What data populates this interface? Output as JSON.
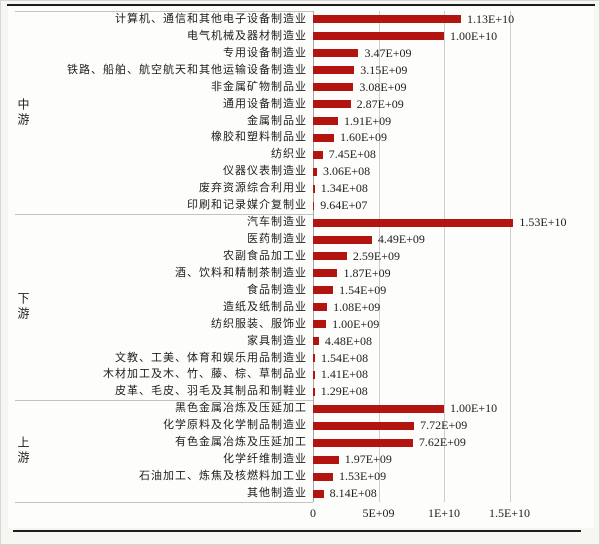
{
  "chart_data": {
    "type": "bar",
    "orientation": "horizontal",
    "title": "",
    "xlabel": "",
    "ylabel": "",
    "grid": "vertical",
    "legend": "none",
    "bar_color": "#b21410",
    "axis_text_color": "#1d1d1d",
    "xlim": [
      0,
      17800000000
    ],
    "x_ticks": [
      {
        "label": "0",
        "value": 0
      },
      {
        "label": "5E+09",
        "value": 5000000000
      },
      {
        "label": "1E+10",
        "value": 10000000000
      },
      {
        "label": "1.5E+10",
        "value": 15000000000
      }
    ],
    "groups": [
      {
        "name": "中游",
        "items": [
          {
            "label": "计算机、通信和其他电子设备制造业",
            "value": 11300000000,
            "value_label": "1.13E+10"
          },
          {
            "label": "电气机械及器材制造业",
            "value": 10000000000,
            "value_label": "1.00E+10"
          },
          {
            "label": "专用设备制造业",
            "value": 3470000000,
            "value_label": "3.47E+09"
          },
          {
            "label": "铁路、船舶、航空航天和其他运输设备制造业",
            "value": 3150000000,
            "value_label": "3.15E+09"
          },
          {
            "label": "非金属矿物制品业",
            "value": 3080000000,
            "value_label": "3.08E+09"
          },
          {
            "label": "通用设备制造业",
            "value": 2870000000,
            "value_label": "2.87E+09"
          },
          {
            "label": "金属制品业",
            "value": 1910000000,
            "value_label": "1.91E+09"
          },
          {
            "label": "橡胶和塑料制品业",
            "value": 1600000000,
            "value_label": "1.60E+09"
          },
          {
            "label": "纺织业",
            "value": 745000000,
            "value_label": "7.45E+08"
          },
          {
            "label": "仪器仪表制造业",
            "value": 306000000,
            "value_label": "3.06E+08"
          },
          {
            "label": "废弃资源综合利用业",
            "value": 134000000,
            "value_label": "1.34E+08"
          },
          {
            "label": "印刷和记录媒介复制业",
            "value": 96400000,
            "value_label": "9.64E+07"
          }
        ]
      },
      {
        "name": "下游",
        "items": [
          {
            "label": "汽车制造业",
            "value": 15300000000,
            "value_label": "1.53E+10"
          },
          {
            "label": "医药制造业",
            "value": 4490000000,
            "value_label": "4.49E+09"
          },
          {
            "label": "农副食品加工业",
            "value": 2590000000,
            "value_label": "2.59E+09"
          },
          {
            "label": "酒、饮料和精制茶制造业",
            "value": 1870000000,
            "value_label": "1.87E+09"
          },
          {
            "label": "食品制造业",
            "value": 1540000000,
            "value_label": "1.54E+09"
          },
          {
            "label": "造纸及纸制品业",
            "value": 1080000000,
            "value_label": "1.08E+09"
          },
          {
            "label": "纺织服装、服饰业",
            "value": 1000000000,
            "value_label": "1.00E+09"
          },
          {
            "label": "家具制造业",
            "value": 448000000,
            "value_label": "4.48E+08"
          },
          {
            "label": "文教、工美、体育和娱乐用品制造业",
            "value": 154000000,
            "value_label": "1.54E+08"
          },
          {
            "label": "木材加工及木、竹、藤、棕、草制品业",
            "value": 141000000,
            "value_label": "1.41E+08"
          },
          {
            "label": "皮革、毛皮、羽毛及其制品和制鞋业",
            "value": 129000000,
            "value_label": "1.29E+08"
          }
        ]
      },
      {
        "name": "上游",
        "items": [
          {
            "label": "黑色金属冶炼及压延加工",
            "value": 10000000000,
            "value_label": "1.00E+10"
          },
          {
            "label": "化学原料及化学制品制造业",
            "value": 7720000000,
            "value_label": "7.72E+09"
          },
          {
            "label": "有色金属冶炼及压延加工",
            "value": 7620000000,
            "value_label": "7.62E+09"
          },
          {
            "label": "化学纤维制造业",
            "value": 1970000000,
            "value_label": "1.97E+09"
          },
          {
            "label": "石油加工、炼焦及核燃料加工业",
            "value": 1530000000,
            "value_label": "1.53E+09"
          },
          {
            "label": "其他制造业",
            "value": 814000000,
            "value_label": "8.14E+08"
          }
        ]
      }
    ]
  }
}
